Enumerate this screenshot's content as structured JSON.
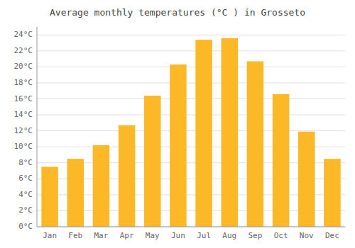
{
  "chart_data": {
    "type": "bar",
    "title": "Average monthly temperatures (°C ) in Grosseto",
    "categories": [
      "Jan",
      "Feb",
      "Mar",
      "Apr",
      "May",
      "Jun",
      "Jul",
      "Aug",
      "Sep",
      "Oct",
      "Nov",
      "Dec"
    ],
    "values": [
      7.5,
      8.5,
      10.2,
      12.7,
      16.4,
      20.3,
      23.4,
      23.6,
      20.7,
      16.6,
      11.9,
      8.5
    ],
    "color": "#FDB827",
    "ylim": [
      0,
      25
    ],
    "yticks": [
      {
        "value": 0,
        "label": "0°C"
      },
      {
        "value": 2,
        "label": "2°C"
      },
      {
        "value": 4,
        "label": "4°C"
      },
      {
        "value": 6,
        "label": "6°C"
      },
      {
        "value": 8,
        "label": "8°C"
      },
      {
        "value": 10,
        "label": "10°C"
      },
      {
        "value": 12,
        "label": "12°C"
      },
      {
        "value": 14,
        "label": "14°C"
      },
      {
        "value": 16,
        "label": "16°C"
      },
      {
        "value": 18,
        "label": "18°C"
      },
      {
        "value": 20,
        "label": "20°C"
      },
      {
        "value": 22,
        "label": "22°C"
      },
      {
        "value": 24,
        "label": "24°C"
      }
    ],
    "grid": true
  }
}
